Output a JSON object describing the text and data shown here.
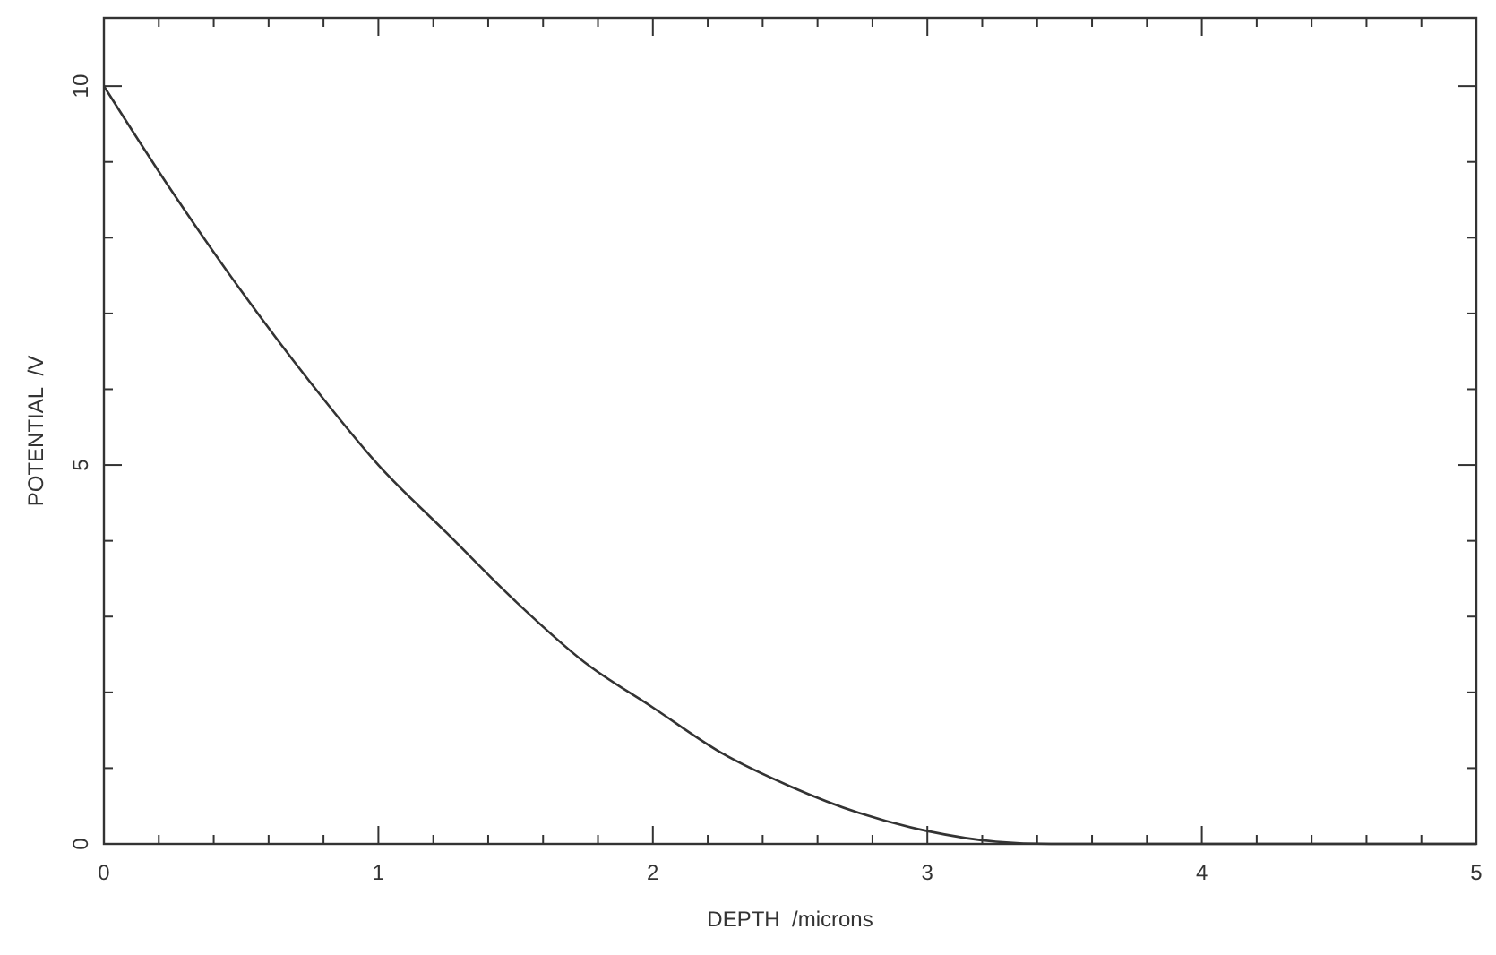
{
  "chart_data": {
    "type": "line",
    "xlabel": "DEPTH  /microns",
    "ylabel": "POTENTIAL  /V",
    "x": [
      0,
      0.25,
      0.5,
      0.75,
      1,
      1.25,
      1.5,
      1.75,
      2,
      2.25,
      2.5,
      2.75,
      3,
      3.25,
      3.45,
      4,
      5
    ],
    "series": [
      {
        "color": "#333333",
        "values": [
          10,
          8.6,
          7.3,
          6.1,
          5.0,
          4.1,
          3.2,
          2.4,
          1.8,
          1.2,
          0.76,
          0.41,
          0.17,
          0.03,
          0,
          0,
          0
        ]
      }
    ],
    "xlim": [
      0,
      5
    ],
    "xticks": [
      0,
      1,
      2,
      3,
      4,
      5
    ],
    "ylim": [
      0,
      10.9
    ],
    "yticks": [
      0,
      5,
      10
    ],
    "grid": false,
    "marker": "none",
    "line_style": "solid"
  }
}
